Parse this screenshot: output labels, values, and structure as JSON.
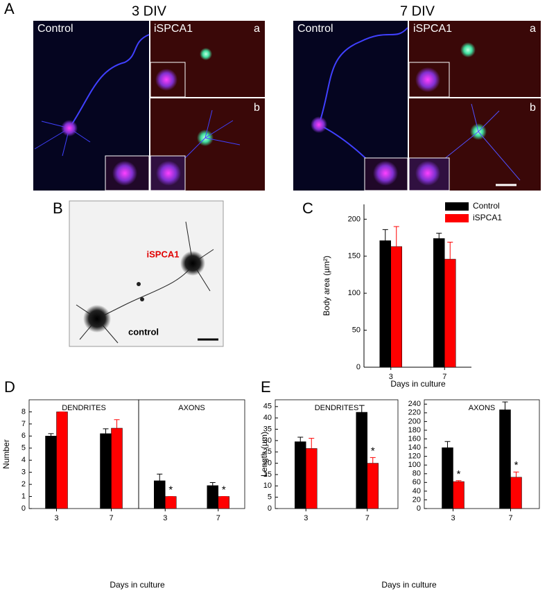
{
  "figure": {
    "panel_labels": [
      "A",
      "B",
      "C",
      "D",
      "E"
    ],
    "A": {
      "conditions": [
        "3 DIV",
        "7 DIV"
      ],
      "image_labels": [
        "Control",
        "iSPCA1",
        "a",
        "b"
      ]
    },
    "B": {
      "labels": [
        "iSPCA1",
        "control"
      ]
    }
  },
  "chart_data": [
    {
      "type": "bar",
      "ylabel": "Body area (µm²)",
      "xlabel": "Days in culture",
      "categories": [
        "3",
        "7"
      ],
      "ylim": [
        0,
        220
      ],
      "yticks": [
        0,
        50,
        100,
        150,
        200
      ],
      "legend": "upper right",
      "series": [
        {
          "name": "Control",
          "color": "#000000",
          "values": [
            171,
            174
          ],
          "errors": [
            15,
            7
          ]
        },
        {
          "name": "iSPCA1",
          "color": "#ff0000",
          "values": [
            163,
            146
          ],
          "errors": [
            27,
            23
          ]
        }
      ]
    },
    {
      "type": "bar",
      "ylabel": "Number",
      "xlabel": "Days in culture",
      "subtitle": "DENDRITES",
      "categories": [
        "3",
        "7"
      ],
      "ylim": [
        0,
        9
      ],
      "yticks": [
        0,
        1,
        2,
        3,
        4,
        5,
        6,
        7,
        8
      ],
      "series": [
        {
          "color": "#000000",
          "values": [
            6.0,
            6.2
          ],
          "errors": [
            0.2,
            0.4
          ]
        },
        {
          "color": "#ff0000",
          "values": [
            8.0,
            6.65
          ],
          "errors": [
            0,
            0.7
          ]
        }
      ]
    },
    {
      "type": "bar",
      "subtitle": "AXONS",
      "categories": [
        "3",
        "7"
      ],
      "ylim": [
        0,
        9
      ],
      "series": [
        {
          "color": "#000000",
          "values": [
            2.3,
            1.9
          ],
          "errors": [
            0.55,
            0.25
          ]
        },
        {
          "color": "#ff0000",
          "values": [
            1.0,
            1.0
          ],
          "errors": [
            0,
            0
          ],
          "stars": [
            "*",
            "*"
          ]
        }
      ]
    },
    {
      "type": "bar",
      "ylabel": "Length (µm)",
      "xlabel": "Days in culture",
      "subtitle": "DENDRITES",
      "categories": [
        "3",
        "7"
      ],
      "ylim": [
        0,
        48
      ],
      "yticks": [
        0,
        5,
        10,
        15,
        20,
        25,
        30,
        35,
        40,
        45
      ],
      "series": [
        {
          "color": "#000000",
          "values": [
            29.5,
            42.5
          ],
          "errors": [
            2,
            3
          ]
        },
        {
          "color": "#ff0000",
          "values": [
            26.5,
            20
          ],
          "errors": [
            4.5,
            2.5
          ],
          "stars": [
            null,
            "*"
          ]
        }
      ]
    },
    {
      "type": "bar",
      "subtitle": "AXONS",
      "categories": [
        "3",
        "7"
      ],
      "ylim": [
        0,
        250
      ],
      "yticks": [
        0,
        20,
        40,
        60,
        80,
        100,
        120,
        140,
        160,
        180,
        200,
        220,
        240
      ],
      "series": [
        {
          "color": "#000000",
          "values": [
            140,
            227
          ],
          "errors": [
            14,
            18
          ]
        },
        {
          "color": "#ff0000",
          "values": [
            62,
            72
          ],
          "errors": [
            2,
            12
          ],
          "stars": [
            "*",
            "*"
          ]
        }
      ]
    }
  ]
}
